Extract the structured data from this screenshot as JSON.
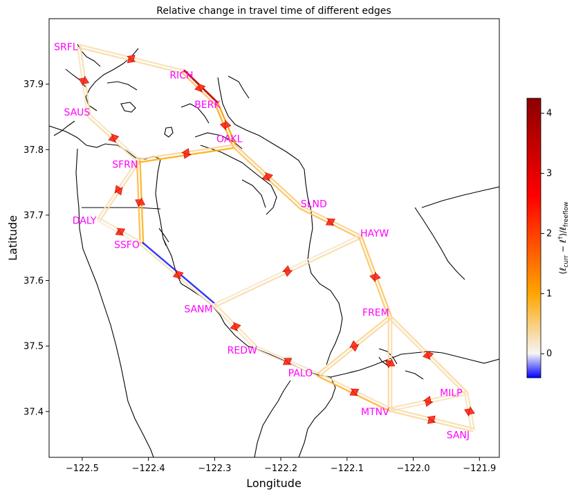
{
  "chart_data": {
    "type": "network-map",
    "title": "Relative change in travel time of different edges",
    "xlabel": "Longitude",
    "ylabel": "Latitude",
    "xlim": [
      -122.55,
      -121.87
    ],
    "ylim": [
      37.33,
      38.0
    ],
    "xticks": [
      -122.5,
      -122.4,
      -122.3,
      -122.2,
      -122.1,
      -122.0,
      -121.9
    ],
    "yticks": [
      37.4,
      37.5,
      37.6,
      37.7,
      37.8,
      37.9
    ],
    "xtick_labels": [
      "−122.5",
      "−122.4",
      "−122.3",
      "−122.2",
      "−122.1",
      "−122.0",
      "−121.9"
    ],
    "ytick_labels": [
      "37.4",
      "37.5",
      "37.6",
      "37.7",
      "37.8",
      "37.9"
    ],
    "colorbar": {
      "label_parts": {
        "open": "(ℓ",
        "curr": "curr",
        "mid": " − ℓ",
        "dagger": "†",
        "close": ")/ℓ",
        "free": "freeflow"
      },
      "range": [
        -0.4,
        4.25
      ],
      "ticks": [
        0,
        1,
        2,
        3,
        4
      ],
      "tick_labels": [
        "0",
        "1",
        "2",
        "3",
        "4"
      ],
      "colormap": [
        "#0000ff",
        "#f5f5f5",
        "#ffa500",
        "#ff0000",
        "#8b0000"
      ]
    },
    "label_color": "#ff00ff",
    "nodes": [
      {
        "name": "SRFL",
        "lon": -122.505,
        "lat": 37.958
      },
      {
        "name": "RICH",
        "lon": -122.347,
        "lat": 37.919
      },
      {
        "name": "BERK",
        "lon": -122.297,
        "lat": 37.87
      },
      {
        "name": "OAKL",
        "lon": -122.27,
        "lat": 37.805
      },
      {
        "name": "SAUS",
        "lon": -122.49,
        "lat": 37.852
      },
      {
        "name": "SFRN",
        "lon": -122.415,
        "lat": 37.783
      },
      {
        "name": "DALY",
        "lon": -122.475,
        "lat": 37.693
      },
      {
        "name": "SSFO",
        "lon": -122.41,
        "lat": 37.656
      },
      {
        "name": "SLND",
        "lon": -122.17,
        "lat": 37.712
      },
      {
        "name": "HAYW",
        "lon": -122.08,
        "lat": 37.667
      },
      {
        "name": "SANM",
        "lon": -122.3,
        "lat": 37.562
      },
      {
        "name": "FREM",
        "lon": -122.035,
        "lat": 37.544
      },
      {
        "name": "REDW",
        "lon": -122.237,
        "lat": 37.497
      },
      {
        "name": "PALO",
        "lon": -122.143,
        "lat": 37.456
      },
      {
        "name": "MTNV",
        "lon": -122.035,
        "lat": 37.403
      },
      {
        "name": "MILP",
        "lon": -121.92,
        "lat": 37.428
      },
      {
        "name": "SANJ",
        "lon": -121.91,
        "lat": 37.372
      }
    ],
    "edges": [
      {
        "from": "SRFL",
        "to": "RICH",
        "value": 0.3
      },
      {
        "from": "RICH",
        "to": "SRFL",
        "value": 0.25
      },
      {
        "from": "SRFL",
        "to": "SAUS",
        "value": 0.2
      },
      {
        "from": "SAUS",
        "to": "SRFL",
        "value": 0.3
      },
      {
        "from": "RICH",
        "to": "BERK",
        "value": 0.65
      },
      {
        "from": "BERK",
        "to": "RICH",
        "value": 3.5
      },
      {
        "from": "BERK",
        "to": "OAKL",
        "value": 0.9
      },
      {
        "from": "OAKL",
        "to": "BERK",
        "value": 1.1
      },
      {
        "from": "SAUS",
        "to": "SFRN",
        "value": 0.3
      },
      {
        "from": "SFRN",
        "to": "SAUS",
        "value": 0.2
      },
      {
        "from": "SFRN",
        "to": "OAKL",
        "value": 0.9
      },
      {
        "from": "OAKL",
        "to": "SFRN",
        "value": 0.4
      },
      {
        "from": "SFRN",
        "to": "DALY",
        "value": 0.25
      },
      {
        "from": "DALY",
        "to": "SFRN",
        "value": 0.3
      },
      {
        "from": "SFRN",
        "to": "SSFO",
        "value": 0.7
      },
      {
        "from": "SSFO",
        "to": "SFRN",
        "value": 0.85
      },
      {
        "from": "DALY",
        "to": "SSFO",
        "value": 0.1
      },
      {
        "from": "SSFO",
        "to": "DALY",
        "value": 0.2
      },
      {
        "from": "SSFO",
        "to": "SANM",
        "value": 0.25
      },
      {
        "from": "SANM",
        "to": "SSFO",
        "value": -0.35
      },
      {
        "from": "OAKL",
        "to": "SLND",
        "value": 0.6
      },
      {
        "from": "SLND",
        "to": "OAKL",
        "value": 0.5
      },
      {
        "from": "SLND",
        "to": "HAYW",
        "value": 0.65
      },
      {
        "from": "HAYW",
        "to": "SLND",
        "value": 0.4
      },
      {
        "from": "HAYW",
        "to": "SANM",
        "value": 0.15
      },
      {
        "from": "SANM",
        "to": "HAYW",
        "value": 0.3
      },
      {
        "from": "HAYW",
        "to": "FREM",
        "value": 0.55
      },
      {
        "from": "FREM",
        "to": "HAYW",
        "value": 0.6
      },
      {
        "from": "SANM",
        "to": "REDW",
        "value": 0.2
      },
      {
        "from": "REDW",
        "to": "SANM",
        "value": 0.25
      },
      {
        "from": "REDW",
        "to": "PALO",
        "value": 0.15
      },
      {
        "from": "PALO",
        "to": "REDW",
        "value": 0.2
      },
      {
        "from": "PALO",
        "to": "FREM",
        "value": 0.35
      },
      {
        "from": "FREM",
        "to": "PALO",
        "value": 0.4
      },
      {
        "from": "PALO",
        "to": "MTNV",
        "value": 0.8
      },
      {
        "from": "MTNV",
        "to": "PALO",
        "value": 0.25
      },
      {
        "from": "FREM",
        "to": "MTNV",
        "value": 0.35
      },
      {
        "from": "MTNV",
        "to": "FREM",
        "value": 0.3
      },
      {
        "from": "FREM",
        "to": "MILP",
        "value": 0.3
      },
      {
        "from": "MILP",
        "to": "FREM",
        "value": 0.35
      },
      {
        "from": "MTNV",
        "to": "MILP",
        "value": 0.2
      },
      {
        "from": "MILP",
        "to": "MTNV",
        "value": 0.25
      },
      {
        "from": "MTNV",
        "to": "SANJ",
        "value": 0.35
      },
      {
        "from": "SANJ",
        "to": "MTNV",
        "value": 0.3
      },
      {
        "from": "MILP",
        "to": "SANJ",
        "value": 0.2
      },
      {
        "from": "SANJ",
        "to": "MILP",
        "value": 0.25
      }
    ]
  }
}
